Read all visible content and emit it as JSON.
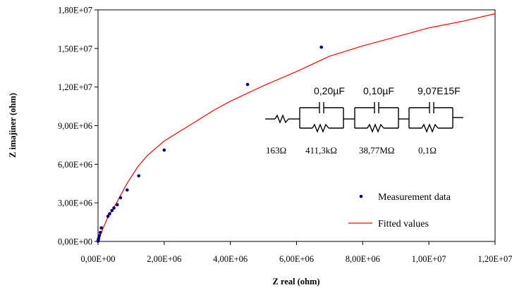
{
  "chart_data": {
    "type": "scatter",
    "xlabel": "Z real (ohm)",
    "ylabel": "Z imajiner (ohm)",
    "xlim": [
      0,
      12000000
    ],
    "ylim": [
      0,
      18000000
    ],
    "x_ticks": [
      0,
      2000000,
      4000000,
      6000000,
      8000000,
      10000000,
      12000000
    ],
    "x_tick_labels": [
      "0,00E+00",
      "2,00E+06",
      "4,00E+06",
      "6,00E+06",
      "8,00E+06",
      "1,00E+07",
      "1,20E+07"
    ],
    "y_ticks": [
      0,
      3000000,
      6000000,
      9000000,
      12000000,
      15000000,
      18000000
    ],
    "y_tick_labels": [
      "0,00E+00",
      "3,00E+06",
      "6,00E+06",
      "9,00E+06",
      "1,20E+07",
      "1,50E+07",
      "1,80E+07"
    ],
    "grid": false,
    "legend_position": "bottom-right",
    "series": [
      {
        "name": "Measurement data",
        "kind": "markers",
        "color": "#00007f",
        "points": [
          [
            2000,
            20000
          ],
          [
            5000,
            60000
          ],
          [
            10000,
            120000
          ],
          [
            20000,
            250000
          ],
          [
            40000,
            450000
          ],
          [
            70000,
            700000
          ],
          [
            100000,
            1050000
          ],
          [
            300000,
            1950000
          ],
          [
            350000,
            2150000
          ],
          [
            420000,
            2400000
          ],
          [
            480000,
            2600000
          ],
          [
            580000,
            2850000
          ],
          [
            680000,
            3400000
          ],
          [
            880000,
            4000000
          ],
          [
            1230000,
            5100000
          ],
          [
            2000000,
            7100000
          ],
          [
            4520000,
            12200000
          ],
          [
            6750000,
            15100000
          ]
        ]
      },
      {
        "name": "Fitted values",
        "kind": "line",
        "color": "#ff0000",
        "points": [
          [
            0,
            0
          ],
          [
            50000,
            300000
          ],
          [
            150000,
            1000000
          ],
          [
            300000,
            1900000
          ],
          [
            450000,
            2500000
          ],
          [
            600000,
            3200000
          ],
          [
            750000,
            3900000
          ],
          [
            900000,
            4600000
          ],
          [
            1050000,
            5200000
          ],
          [
            1200000,
            5800000
          ],
          [
            1500000,
            6700000
          ],
          [
            2000000,
            7800000
          ],
          [
            2500000,
            8600000
          ],
          [
            3000000,
            9400000
          ],
          [
            3500000,
            10200000
          ],
          [
            4000000,
            10900000
          ],
          [
            5000000,
            12100000
          ],
          [
            6000000,
            13200000
          ],
          [
            7000000,
            14400000
          ],
          [
            8000000,
            15200000
          ],
          [
            9000000,
            15900000
          ],
          [
            10000000,
            16600000
          ],
          [
            11000000,
            17100000
          ],
          [
            12000000,
            17700000
          ]
        ]
      }
    ],
    "annotations": {
      "capacitors": [
        "0,20µF",
        "0,10µF",
        "9,07E15F"
      ],
      "resistors": [
        "163Ω",
        "411,3kΩ",
        "38,77MΩ",
        "0,1Ω"
      ]
    }
  }
}
